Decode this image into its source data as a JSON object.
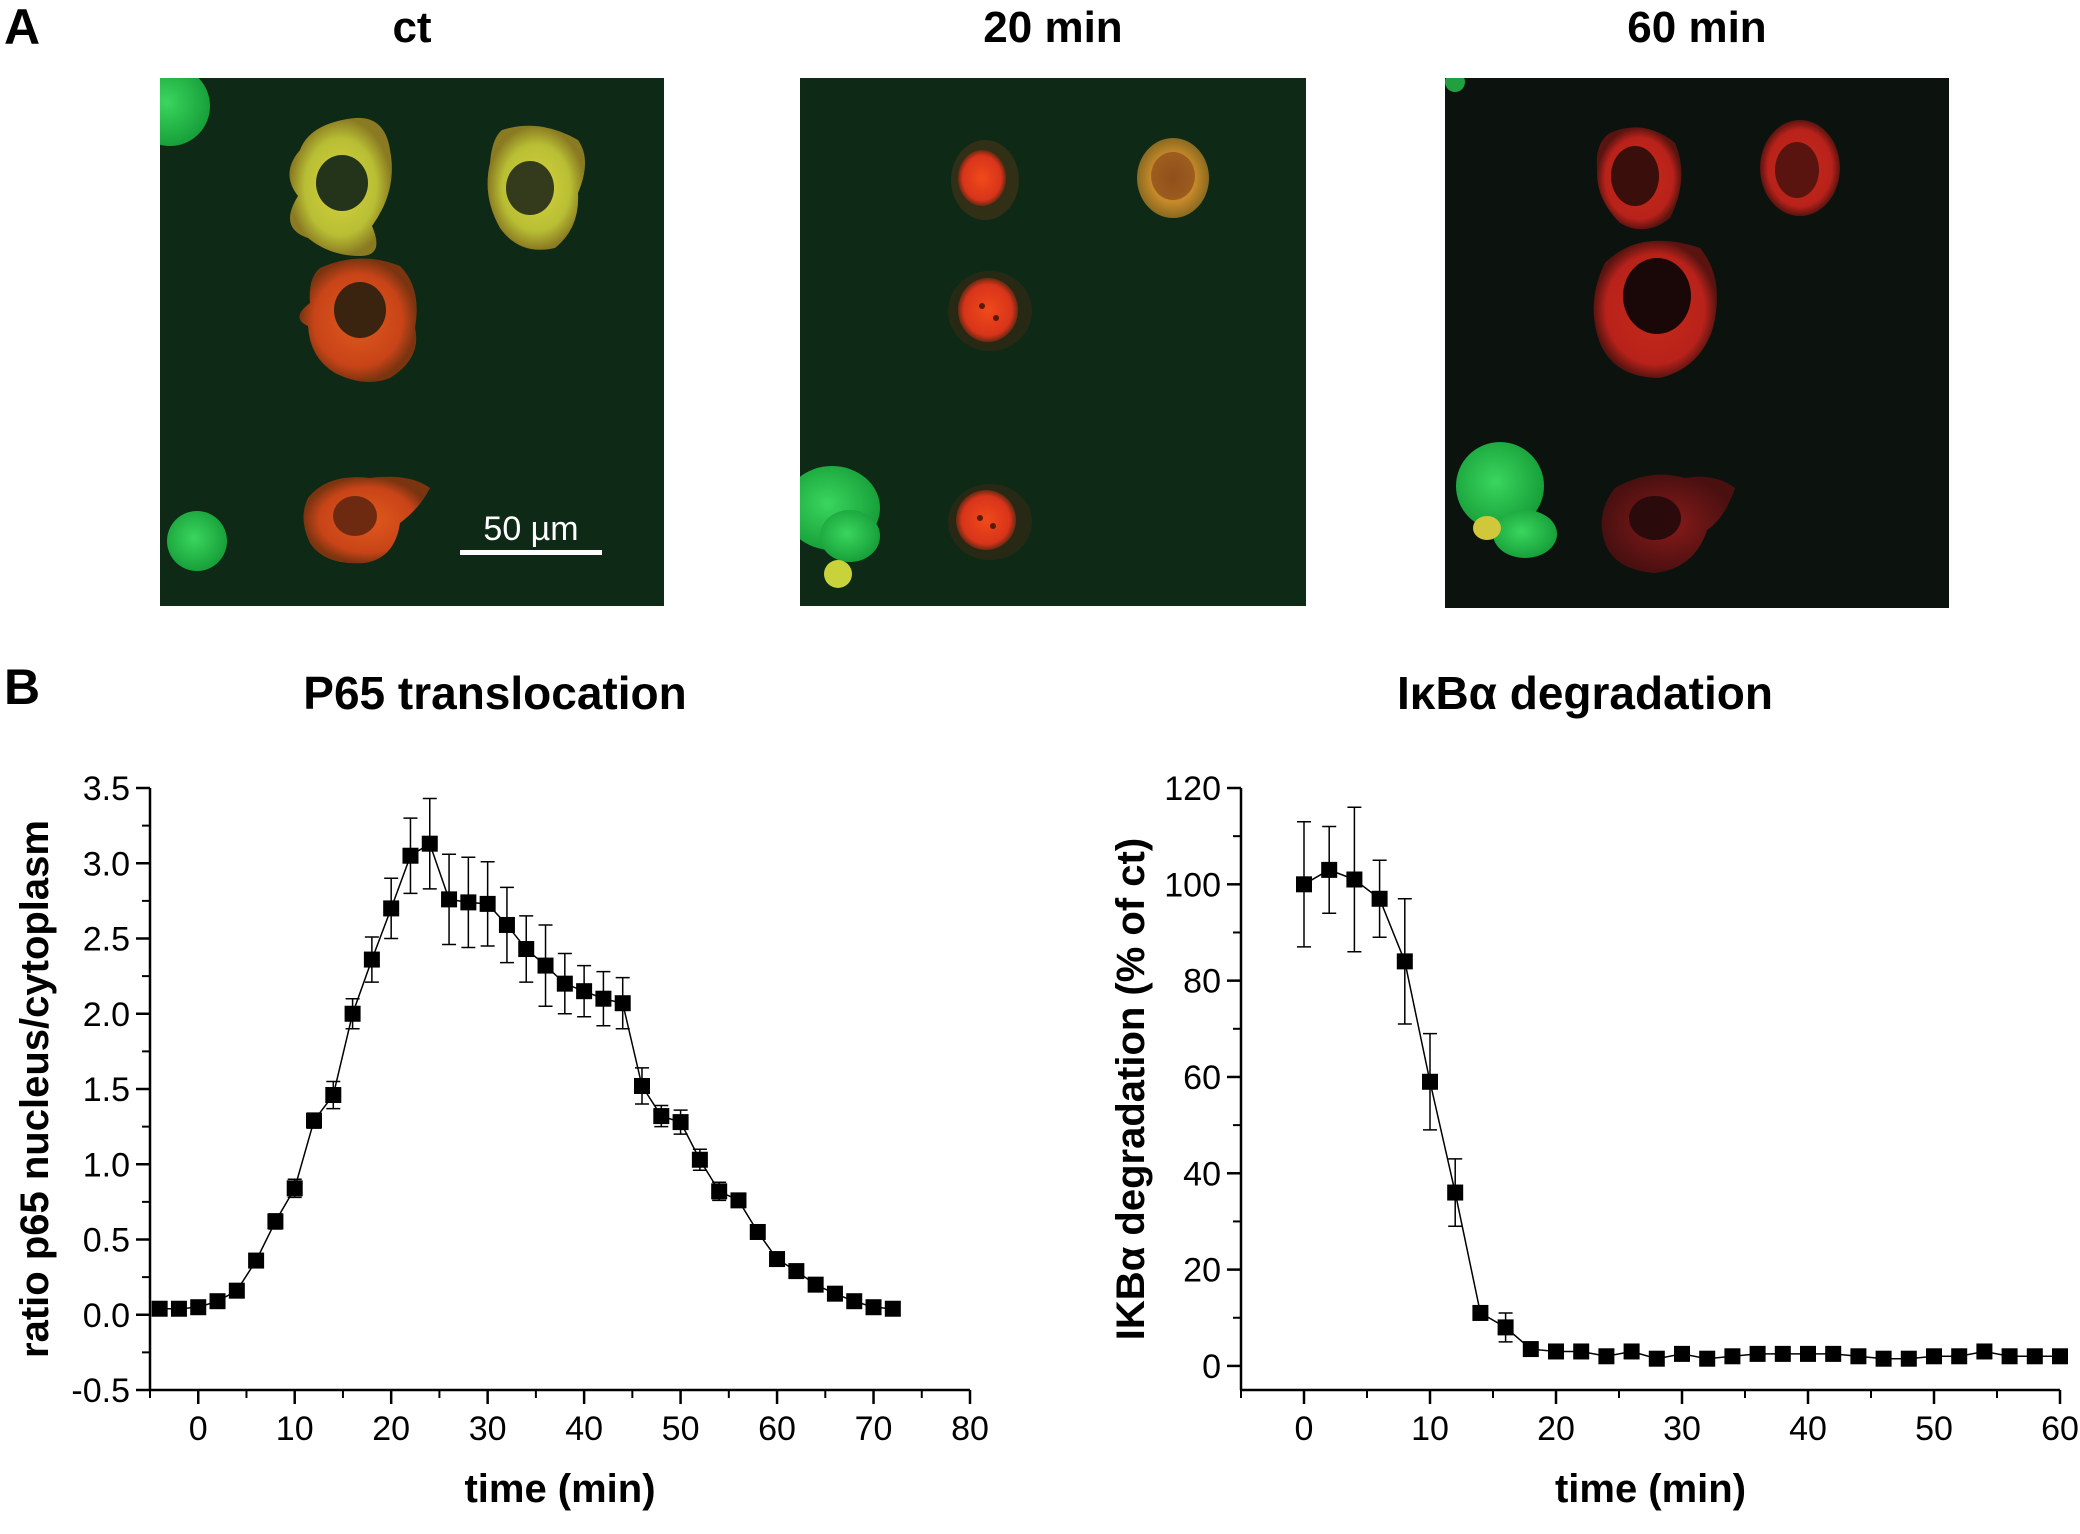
{
  "panelA": {
    "letter": "A",
    "images": [
      {
        "title": "ct",
        "kind": "fluorescence-micrograph-ct"
      },
      {
        "title": "20 min",
        "kind": "fluorescence-micrograph-20min"
      },
      {
        "title": "60 min",
        "kind": "fluorescence-micrograph-60min"
      }
    ],
    "scale_bar_label": "50 µm"
  },
  "panelB": {
    "letter": "B"
  },
  "colors": {
    "green_bg": "#0e2a16",
    "dark_bg": "#0c130e",
    "red": "#d82a1a",
    "yellow": "#b8c23a",
    "green": "#22c04a"
  },
  "chart_data": [
    {
      "type": "scatter",
      "title": "P65 translocation",
      "xlabel": "time (min)",
      "ylabel": "ratio p65 nucleus/cytoplasm",
      "xlim": [
        -5,
        80
      ],
      "ylim": [
        -0.5,
        3.5
      ],
      "x_ticks": [
        "0",
        "10",
        "20",
        "30",
        "40",
        "50",
        "60",
        "70",
        "80"
      ],
      "y_ticks": [
        "-0.5",
        "0.0",
        "0.5",
        "1.0",
        "1.5",
        "2.0",
        "2.5",
        "3.0",
        "3.5"
      ],
      "x": [
        -4,
        -2,
        0,
        2,
        4,
        6,
        8,
        10,
        12,
        14,
        16,
        18,
        20,
        22,
        24,
        26,
        28,
        30,
        32,
        34,
        36,
        38,
        40,
        42,
        44,
        46,
        48,
        50,
        52,
        54,
        56,
        58,
        60,
        62,
        64,
        66,
        68,
        70,
        72
      ],
      "y": [
        0.04,
        0.04,
        0.05,
        0.09,
        0.16,
        0.36,
        0.62,
        0.84,
        1.29,
        1.46,
        2.0,
        2.36,
        2.7,
        3.05,
        3.13,
        2.76,
        2.74,
        2.73,
        2.59,
        2.43,
        2.32,
        2.2,
        2.15,
        2.1,
        2.07,
        1.52,
        1.32,
        1.28,
        1.03,
        0.82,
        0.76,
        0.55,
        0.37,
        0.29,
        0.2,
        0.14,
        0.09,
        0.05,
        0.04
      ],
      "err": [
        0.02,
        0.02,
        0.02,
        0.03,
        0.04,
        0.04,
        0.05,
        0.06,
        0.05,
        0.09,
        0.1,
        0.15,
        0.2,
        0.25,
        0.3,
        0.3,
        0.3,
        0.28,
        0.25,
        0.22,
        0.27,
        0.2,
        0.17,
        0.18,
        0.17,
        0.12,
        0.07,
        0.08,
        0.07,
        0.06,
        0.04,
        0.03,
        0.03,
        0.03,
        0.03,
        0.03,
        0.03,
        0.03,
        0.02
      ]
    },
    {
      "type": "scatter",
      "title": "IκBα degradation",
      "xlabel": "time (min)",
      "ylabel": "IKBα degradation (% of ct)",
      "xlim": [
        -5,
        60
      ],
      "ylim": [
        -5,
        120
      ],
      "x_ticks": [
        "0",
        "10",
        "20",
        "30",
        "40",
        "50",
        "60"
      ],
      "y_ticks": [
        "0",
        "20",
        "40",
        "60",
        "80",
        "100",
        "120"
      ],
      "x": [
        0,
        2,
        4,
        6,
        8,
        10,
        12,
        14,
        16,
        18,
        20,
        22,
        24,
        26,
        28,
        30,
        32,
        34,
        36,
        38,
        40,
        42,
        44,
        46,
        48,
        50,
        52,
        54,
        56,
        58,
        60
      ],
      "y": [
        100,
        103,
        101,
        97,
        84,
        59,
        36,
        11,
        8,
        3.5,
        3,
        3,
        2,
        3,
        1.5,
        2.5,
        1.5,
        2,
        2.5,
        2.5,
        2.5,
        2.5,
        2,
        1.5,
        1.5,
        2,
        2,
        3,
        2,
        2,
        2
      ],
      "err": [
        13,
        9,
        15,
        8,
        13,
        10,
        7,
        1,
        3,
        1,
        1,
        1,
        1,
        1,
        1,
        1,
        1,
        1,
        1,
        1,
        1,
        1,
        1,
        1,
        1,
        1,
        1,
        1,
        1,
        1,
        1
      ]
    }
  ]
}
